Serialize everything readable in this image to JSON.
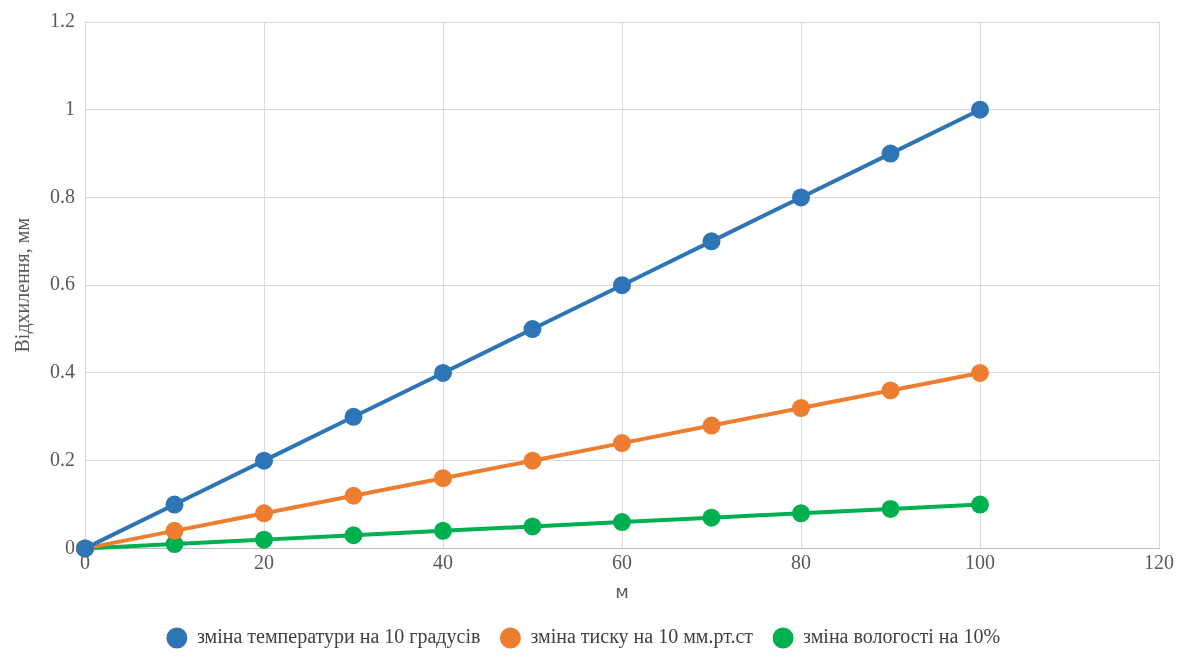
{
  "chart_data": {
    "type": "line",
    "xlabel": "м",
    "ylabel": "Відхилення, мм",
    "x": [
      0,
      10,
      20,
      30,
      40,
      50,
      60,
      70,
      80,
      90,
      100
    ],
    "series": [
      {
        "name": "зміна температури на 10 градусів",
        "color": "#2e75b6",
        "values": [
          0,
          0.1,
          0.2,
          0.3,
          0.4,
          0.5,
          0.6,
          0.7,
          0.8,
          0.9,
          1
        ]
      },
      {
        "name": "зміна тиску на 10 мм.рт.ст",
        "color": "#ed7d31",
        "values": [
          0,
          0.04,
          0.08,
          0.12,
          0.16,
          0.2,
          0.24,
          0.28,
          0.32,
          0.36,
          0.4
        ]
      },
      {
        "name": "зміна вологості на 10%",
        "color": "#00b050",
        "values": [
          0,
          0.01,
          0.02,
          0.03,
          0.04,
          0.05,
          0.06,
          0.07,
          0.08,
          0.09,
          0.1
        ]
      }
    ],
    "xlim": [
      0,
      120
    ],
    "xticks": [
      0,
      20,
      40,
      60,
      80,
      100,
      120
    ],
    "ylim": [
      0,
      1.2
    ],
    "yticks": [
      0,
      0.2,
      0.4,
      0.6,
      0.8,
      1,
      1.2
    ],
    "grid": true,
    "legend": "bottom",
    "marker": "circle",
    "line_style": "solid"
  }
}
